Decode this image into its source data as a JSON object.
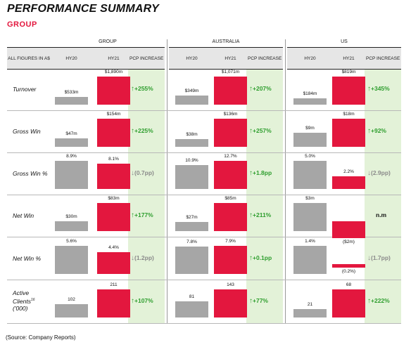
{
  "title": "PERFORMANCE SUMMARY",
  "subtitle": "GROUP",
  "first_header": "ALL FIGURES IN A$",
  "col_hy20": "HY20",
  "col_hy21": "HY21",
  "col_pcp": "PCP INCREASE",
  "panels": [
    "GROUP",
    "AUSTRALIA",
    "US"
  ],
  "rows": [
    {
      "label": "Turnover",
      "cells": [
        {
          "hy20": 533,
          "hy20_label": "$533m",
          "hy21": 1890,
          "hy21_label": "$1,890m",
          "pcp": "+255%",
          "dir": "up"
        },
        {
          "hy20": 349,
          "hy20_label": "$349m",
          "hy21": 1071,
          "hy21_label": "$1,071m",
          "pcp": "+207%",
          "dir": "up"
        },
        {
          "hy20": 184,
          "hy20_label": "$184m",
          "hy21": 819,
          "hy21_label": "$819m",
          "pcp": "+345%",
          "dir": "up"
        }
      ]
    },
    {
      "label": "Gross Win",
      "cells": [
        {
          "hy20": 47,
          "hy20_label": "$47m",
          "hy21": 154,
          "hy21_label": "$154m",
          "pcp": "+225%",
          "dir": "up"
        },
        {
          "hy20": 38,
          "hy20_label": "$38m",
          "hy21": 136,
          "hy21_label": "$136m",
          "pcp": "+257%",
          "dir": "up"
        },
        {
          "hy20": 9,
          "hy20_label": "$9m",
          "hy21": 18,
          "hy21_label": "$18m",
          "pcp": "+92%",
          "dir": "up"
        }
      ]
    },
    {
      "label": "Gross Win %",
      "cells": [
        {
          "hy20": 8.9,
          "hy20_label": "8.9%",
          "hy21": 8.1,
          "hy21_label": "8.1%",
          "pcp": "(0.7pp)",
          "dir": "down"
        },
        {
          "hy20": 10.9,
          "hy20_label": "10.9%",
          "hy21": 12.7,
          "hy21_label": "12.7%",
          "pcp": "+1.8pp",
          "dir": "up"
        },
        {
          "hy20": 5.0,
          "hy20_label": "5.0%",
          "hy21": 2.2,
          "hy21_label": "2.2%",
          "pcp": "(2.9pp)",
          "dir": "down"
        }
      ]
    },
    {
      "label": "Net Win",
      "cells": [
        {
          "hy20": 30,
          "hy20_label": "$30m",
          "hy21": 83,
          "hy21_label": "$83m",
          "pcp": "+177%",
          "dir": "up"
        },
        {
          "hy20": 27,
          "hy20_label": "$27m",
          "hy21": 85,
          "hy21_label": "$85m",
          "pcp": "+211%",
          "dir": "up"
        },
        {
          "hy20": 3,
          "hy20_label": "$3m",
          "hy21": -2,
          "hy21_label": "($2m)",
          "pcp": "n.m",
          "dir": "none"
        }
      ]
    },
    {
      "label": "Net Win %",
      "cells": [
        {
          "hy20": 5.6,
          "hy20_label": "5.6%",
          "hy21": 4.4,
          "hy21_label": "4.4%",
          "pcp": "(1.2pp)",
          "dir": "down"
        },
        {
          "hy20": 7.8,
          "hy20_label": "7.8%",
          "hy21": 7.9,
          "hy21_label": "7.9%",
          "pcp": "+0.1pp",
          "dir": "up"
        },
        {
          "hy20": 1.4,
          "hy20_label": "1.4%",
          "hy21": -0.2,
          "hy21_label": "(0.2%)",
          "pcp": "(1.7pp)",
          "dir": "down"
        }
      ]
    },
    {
      "label": "Active Clients",
      "label_sup": "16",
      "label_line2": "('000)",
      "cells": [
        {
          "hy20": 102,
          "hy20_label": "102",
          "hy21": 211,
          "hy21_label": "211",
          "pcp": "+107%",
          "dir": "up"
        },
        {
          "hy20": 81,
          "hy20_label": "81",
          "hy21": 143,
          "hy21_label": "143",
          "pcp": "+77%",
          "dir": "up"
        },
        {
          "hy20": 21,
          "hy20_label": "21",
          "hy21": 68,
          "hy21_label": "68",
          "pcp": "+222%",
          "dir": "up"
        }
      ]
    }
  ],
  "source": "(Source: Company Reports)",
  "colors": {
    "hy20": "#a6a6a6",
    "hy21": "#e3173e",
    "up": "#2e9e2e",
    "down": "#8a8a8a",
    "pcp_bg": "#e3f2d8"
  }
}
